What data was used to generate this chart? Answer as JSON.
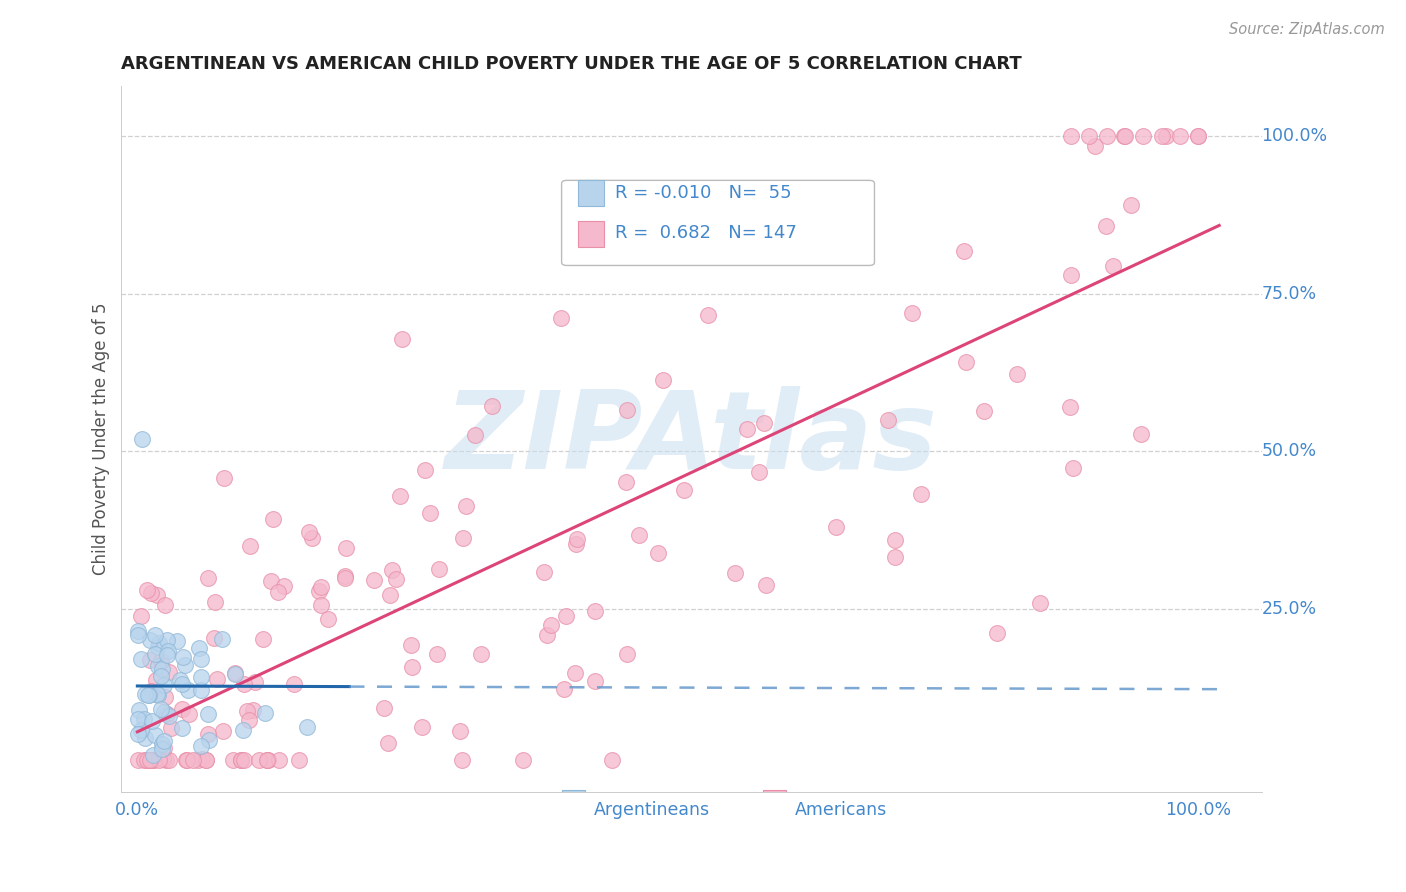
{
  "title": "ARGENTINEAN VS AMERICAN CHILD POVERTY UNDER THE AGE OF 5 CORRELATION CHART",
  "source": "Source: ZipAtlas.com",
  "ylabel": "Child Poverty Under the Age of 5",
  "legend_argentinean": "Argentineans",
  "legend_american": "Americans",
  "r_argentinean": -0.01,
  "n_argentinean": 55,
  "r_american": 0.682,
  "n_american": 147,
  "blue_fill": "#b8d4ed",
  "pink_fill": "#f5b8cc",
  "blue_edge": "#90b8d8",
  "pink_edge": "#e890a8",
  "blue_line_color": "#2266aa",
  "pink_line_color": "#dd4477",
  "blue_dash_color": "#6699cc",
  "grid_color": "#d0d0d0",
  "text_blue": "#4488cc",
  "title_color": "#222222",
  "ylabel_color": "#555555",
  "source_color": "#999999",
  "background": "#ffffff",
  "watermark_color": "#c8dff0",
  "dot_size": 130,
  "dot_alpha": 0.75
}
